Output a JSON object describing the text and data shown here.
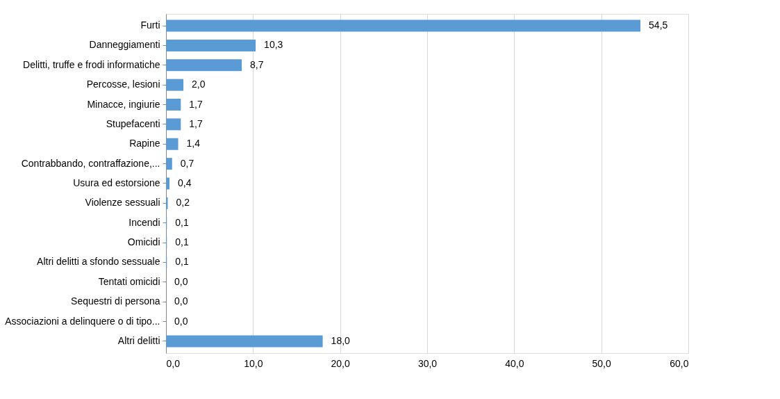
{
  "chart_data": {
    "type": "bar",
    "orientation": "horizontal",
    "categories": [
      "Furti",
      "Danneggiamenti",
      "Delitti, truffe e frodi informatiche",
      "Percosse, lesioni",
      "Minacce, ingiurie",
      "Stupefacenti",
      "Rapine",
      "Contrabbando, contraffazione,...",
      "Usura ed estorsione",
      "Violenze sessuali",
      "Incendi",
      "Omicidi",
      "Altri delitti a sfondo sessuale",
      "Tentati omicidi",
      "Sequestri di persona",
      "Associazioni a delinquere o di tipo...",
      "Altri delitti"
    ],
    "values": [
      54.5,
      10.3,
      8.7,
      2.0,
      1.7,
      1.7,
      1.4,
      0.7,
      0.4,
      0.2,
      0.1,
      0.1,
      0.1,
      0.0,
      0.0,
      0.0,
      18.0
    ],
    "value_labels": [
      "54,5",
      "10,3",
      "8,7",
      "2,0",
      "1,7",
      "1,7",
      "1,4",
      "0,7",
      "0,4",
      "0,2",
      "0,1",
      "0,1",
      "0,1",
      "0,0",
      "0,0",
      "0,0",
      "18,0"
    ],
    "color": "#5b9bd5",
    "xlim": [
      0,
      60
    ],
    "xticks": [
      {
        "value": 0,
        "label": "0,0"
      },
      {
        "value": 10,
        "label": "10,0"
      },
      {
        "value": 20,
        "label": "20,0"
      },
      {
        "value": 30,
        "label": "30,0"
      },
      {
        "value": 40,
        "label": "40,0"
      },
      {
        "value": 50,
        "label": "50,0"
      },
      {
        "value": 60,
        "label": "60,0"
      }
    ],
    "grid": "x"
  }
}
